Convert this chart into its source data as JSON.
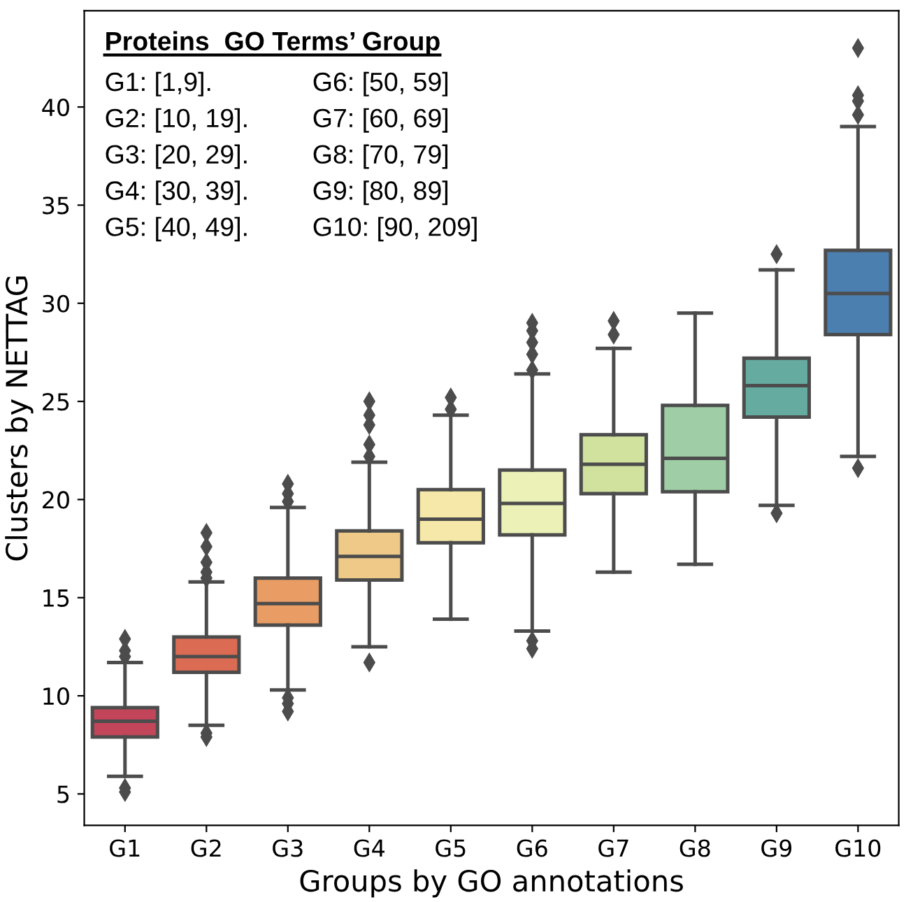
{
  "chart_data": {
    "type": "box",
    "xlabel": "Groups by GO annotations",
    "ylabel": "Clusters by NETTAG",
    "categories": [
      "G1",
      "G2",
      "G3",
      "G4",
      "G5",
      "G6",
      "G7",
      "G8",
      "G9",
      "G10"
    ],
    "colors": [
      "#c2455a",
      "#dc6b53",
      "#e99c63",
      "#efc987",
      "#f6e8a8",
      "#ecf2b7",
      "#d1e29f",
      "#9fcda6",
      "#66ab9f",
      "#4a7fb0"
    ],
    "boxes": [
      {
        "low": 5.9,
        "q1": 7.9,
        "median": 8.7,
        "q3": 9.4,
        "high": 11.7,
        "outliers": [
          5.1,
          5.3,
          12.0,
          12.3,
          12.9
        ]
      },
      {
        "low": 8.5,
        "q1": 11.2,
        "median": 12.0,
        "q3": 13.0,
        "high": 15.8,
        "outliers": [
          7.9,
          8.1,
          16.0,
          16.3,
          16.8,
          17.6,
          18.3
        ]
      },
      {
        "low": 10.3,
        "q1": 13.6,
        "median": 14.7,
        "q3": 16.0,
        "high": 19.6,
        "outliers": [
          9.2,
          9.6,
          9.9,
          19.9,
          20.3,
          20.8
        ]
      },
      {
        "low": 12.5,
        "q1": 15.9,
        "median": 17.1,
        "q3": 18.4,
        "high": 21.9,
        "outliers": [
          11.7,
          22.2,
          22.8,
          23.8,
          24.3,
          25.0
        ]
      },
      {
        "low": 13.9,
        "q1": 17.8,
        "median": 19.0,
        "q3": 20.5,
        "high": 24.3,
        "outliers": [
          24.6,
          25.2
        ]
      },
      {
        "low": 13.3,
        "q1": 18.2,
        "median": 19.8,
        "q3": 21.5,
        "high": 26.4,
        "outliers": [
          12.4,
          12.8,
          26.6,
          27.4,
          28.0,
          28.6,
          29.0
        ]
      },
      {
        "low": 16.3,
        "q1": 20.3,
        "median": 21.8,
        "q3": 23.3,
        "high": 27.7,
        "outliers": [
          28.4,
          29.1
        ]
      },
      {
        "low": 16.7,
        "q1": 20.4,
        "median": 22.1,
        "q3": 24.8,
        "high": 29.5
      },
      {
        "low": 19.7,
        "q1": 24.2,
        "median": 25.8,
        "q3": 27.2,
        "high": 31.7,
        "outliers": [
          19.3,
          32.5
        ]
      },
      {
        "low": 22.2,
        "q1": 28.4,
        "median": 30.5,
        "q3": 32.7,
        "high": 39.0,
        "outliers": [
          21.6,
          39.6,
          40.3,
          40.6,
          43.0
        ]
      }
    ],
    "ylim": [
      3.4,
      44.9
    ],
    "yticks": [
      5,
      10,
      15,
      20,
      25,
      30,
      35,
      40
    ],
    "grid": false,
    "marker": "diamond",
    "annotations": [
      "Proteins  GO Terms’ Group",
      "G1: [1,9].",
      "G2: [10, 19].",
      "G3: [20, 29].",
      "G4: [30, 39].",
      "G5: [40, 49].",
      "G6: [50, 59]",
      "G7: [60, 69]",
      "G8: [70, 79]",
      "G9: [80, 89]",
      "G10: [90, 209]"
    ]
  }
}
